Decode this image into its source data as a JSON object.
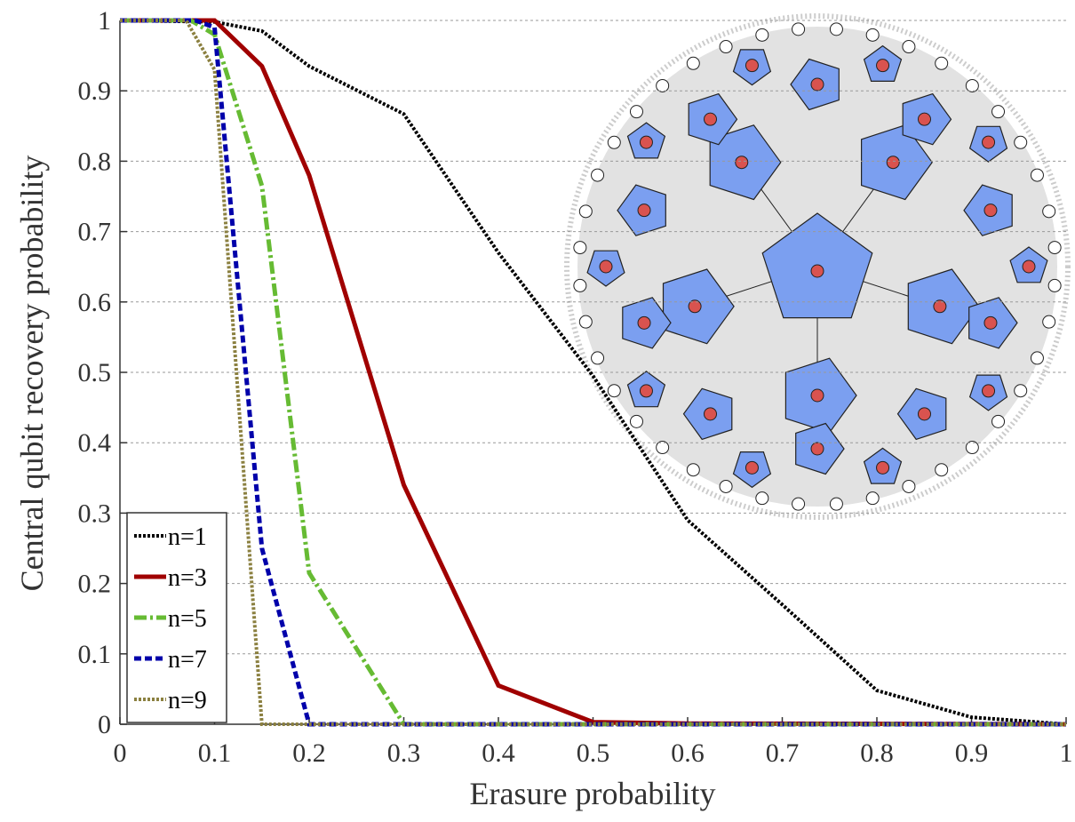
{
  "chart_data": {
    "type": "line",
    "x_label": "Erasure probability",
    "y_label": "Central qubit recovery probability",
    "xlim": [
      0,
      1
    ],
    "ylim": [
      0,
      1
    ],
    "xticks": [
      0,
      0.1,
      0.2,
      0.3,
      0.4,
      0.5,
      0.6,
      0.7,
      0.8,
      0.9,
      1
    ],
    "yticks": [
      0,
      0.1,
      0.2,
      0.3,
      0.4,
      0.5,
      0.6,
      0.7,
      0.8,
      0.9,
      1
    ],
    "grid": true,
    "legend": "lower left",
    "series": [
      {
        "name": "n=1",
        "color": "#000000",
        "x": [
          0,
          0.1,
          0.15,
          0.2,
          0.3,
          0.4,
          0.5,
          0.6,
          0.7,
          0.8,
          0.9,
          1
        ],
        "values": [
          1,
          0.998,
          0.985,
          0.935,
          0.867,
          0.67,
          0.495,
          0.29,
          0.17,
          0.048,
          0.01,
          0
        ]
      },
      {
        "name": "n=3",
        "color": "#a00000",
        "x": [
          0,
          0.1,
          0.15,
          0.2,
          0.3,
          0.4,
          0.5,
          0.6,
          1
        ],
        "values": [
          1,
          1,
          0.935,
          0.78,
          0.34,
          0.055,
          0.003,
          0.001,
          0
        ]
      },
      {
        "name": "n=5",
        "color": "#66bb33",
        "x": [
          0,
          0.075,
          0.1,
          0.15,
          0.2,
          0.3,
          1
        ],
        "values": [
          1,
          1,
          0.98,
          0.765,
          0.215,
          0,
          0
        ]
      },
      {
        "name": "n=7",
        "color": "#0000aa",
        "x": [
          0,
          0.08,
          0.1,
          0.15,
          0.2,
          1
        ],
        "values": [
          1,
          1,
          0.99,
          0.25,
          0,
          0
        ]
      },
      {
        "name": "n=9",
        "color": "#8b8040",
        "x": [
          0,
          0.07,
          0.1,
          0.15,
          1
        ],
        "values": [
          1,
          1,
          0.93,
          0,
          0
        ]
      }
    ]
  }
}
